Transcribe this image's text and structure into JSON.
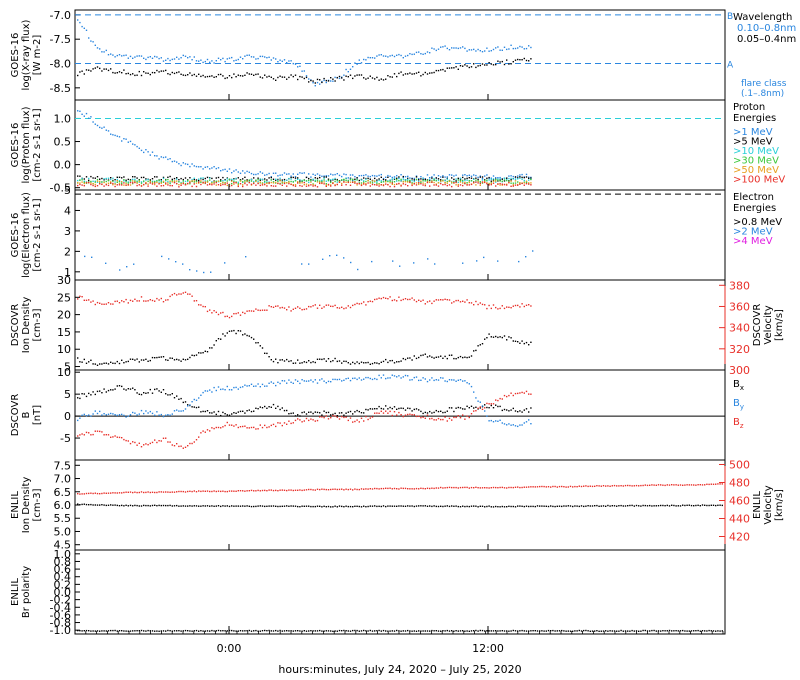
{
  "figure": {
    "xlabel": "hours:minutes, July 24, 2020 – July 25, 2020",
    "x_ticks": [
      "0:00",
      "12:00"
    ]
  },
  "chart_data": [
    {
      "id": "xray",
      "type": "scatter",
      "ylabel": [
        "GOES-16",
        "log(X-ray flux)",
        "[W m-2]"
      ],
      "ylim": [
        -8.75,
        -6.9
      ],
      "yticks": [
        -7.0,
        -7.5,
        -8.0,
        -8.5
      ],
      "legend_title": "Wavelength",
      "series": [
        {
          "name": "0.10–0.8nm",
          "color": "#2a86df",
          "values": [
            -7.0,
            -7.7,
            -7.85,
            -7.85,
            -7.9,
            -7.85,
            -7.95,
            -7.9,
            -7.85,
            -7.9,
            -7.95,
            -8.4,
            -8.3,
            -7.95,
            -7.8,
            -7.85,
            -7.75,
            -7.65,
            -7.7,
            -7.7,
            -7.65,
            -7.65
          ]
        },
        {
          "name": "0.05–0.4nm",
          "color": "#000000",
          "values": [
            -8.2,
            -8.1,
            -8.15,
            -8.2,
            -8.15,
            -8.2,
            -8.25,
            -8.25,
            -8.2,
            -8.3,
            -8.25,
            -8.35,
            -8.3,
            -8.25,
            -8.3,
            -8.2,
            -8.2,
            -8.1,
            -8.05,
            -8.0,
            -7.95,
            -7.9
          ]
        }
      ],
      "ref_lines": [
        {
          "value": -7.0,
          "label": "B",
          "color": "#2a86df"
        },
        {
          "value": -8.0,
          "label": "A",
          "color": "#2a86df"
        }
      ],
      "annotation": [
        "flare class",
        "(.1–.8nm)"
      ]
    },
    {
      "id": "proton",
      "type": "scatter",
      "ylabel": [
        "GOES-16",
        "log(Proton flux)",
        "[cm-2 s-1 sr-1]"
      ],
      "ylim": [
        -0.55,
        1.4
      ],
      "yticks": [
        1.0,
        0.5,
        0.0,
        -0.5
      ],
      "legend_title": [
        "Proton",
        "Energies"
      ],
      "ref_lines": [
        {
          "value": 1.0,
          "color": "#2ad0d8"
        }
      ],
      "series": [
        {
          "name": ">1 MeV",
          "color": "#2a86df",
          "values": [
            1.25,
            0.9,
            0.6,
            0.35,
            0.15,
            0.02,
            -0.05,
            -0.12,
            -0.15,
            -0.2,
            -0.2,
            -0.22,
            -0.22,
            -0.24,
            -0.24,
            -0.25,
            -0.25,
            -0.24,
            -0.25,
            -0.25,
            -0.25,
            -0.24
          ]
        },
        {
          "name": ">5 MeV",
          "color": "#000000",
          "values": [
            -0.28,
            -0.28,
            -0.29,
            -0.29,
            -0.28,
            -0.3,
            -0.3,
            -0.29,
            -0.3,
            -0.29,
            -0.3,
            -0.3,
            -0.29,
            -0.3,
            -0.3,
            -0.29,
            -0.3,
            -0.3,
            -0.29,
            -0.3,
            -0.3,
            -0.29
          ]
        },
        {
          "name": ">10 MeV",
          "color": "#2ad0d8",
          "values": [
            -0.32,
            -0.33,
            -0.32,
            -0.33,
            -0.32,
            -0.33,
            -0.32,
            -0.33,
            -0.32,
            -0.33,
            -0.32,
            -0.33,
            -0.32,
            -0.33,
            -0.32,
            -0.33,
            -0.32,
            -0.33,
            -0.32,
            -0.33,
            -0.32,
            -0.33
          ]
        },
        {
          "name": ">30 MeV",
          "color": "#3cc83c",
          "values": [
            -0.35,
            -0.35,
            -0.36,
            -0.35,
            -0.35,
            -0.36,
            -0.35,
            -0.35,
            -0.36,
            -0.35,
            -0.35,
            -0.36,
            -0.35,
            -0.35,
            -0.36,
            -0.35,
            -0.35,
            -0.36,
            -0.35,
            -0.35,
            -0.36,
            -0.35
          ]
        },
        {
          "name": ">50 MeV",
          "color": "#e8a020",
          "values": [
            -0.38,
            -0.38,
            -0.38,
            -0.39,
            -0.38,
            -0.38,
            -0.38,
            -0.39,
            -0.38,
            -0.38,
            -0.38,
            -0.39,
            -0.38,
            -0.38,
            -0.38,
            -0.39,
            -0.38,
            -0.38,
            -0.38,
            -0.39,
            -0.38,
            -0.38
          ]
        },
        {
          "name": ">100 MeV",
          "color": "#e8302a",
          "values": [
            -0.41,
            -0.41,
            -0.42,
            -0.41,
            -0.41,
            -0.42,
            -0.41,
            -0.41,
            -0.42,
            -0.41,
            -0.41,
            -0.42,
            -0.41,
            -0.41,
            -0.42,
            -0.41,
            -0.41,
            -0.42,
            -0.41,
            -0.41,
            -0.42,
            -0.41
          ]
        }
      ]
    },
    {
      "id": "electron",
      "type": "scatter",
      "ylabel": [
        "GOES-16",
        "log(Electron flux)",
        "[cm-2 s-1 sr-1]"
      ],
      "ylim": [
        0.6,
        5.0
      ],
      "yticks": [
        5,
        4,
        3,
        2,
        1
      ],
      "legend_title": [
        "Electron",
        "Energies"
      ],
      "ref_lines": [
        {
          "value": 4.8,
          "color": "#000000"
        }
      ],
      "series": [
        {
          "name": ">0.8 MeV",
          "color": "#000000",
          "values": []
        },
        {
          "name": ">2 MeV",
          "color": "#2a86df",
          "values": [
            2.0,
            1.6,
            1.1,
            1.4,
            1.8,
            1.3,
            0.9,
            1.5,
            1.9,
            1.2,
            1.6,
            1.4,
            1.9,
            1.1,
            1.7,
            1.3,
            1.8,
            1.2,
            1.5,
            1.9,
            1.3,
            2.0
          ]
        },
        {
          "name": ">4 MeV",
          "color": "#e020e0",
          "values": []
        }
      ]
    },
    {
      "id": "dscovr_density",
      "type": "scatter",
      "ylabel": [
        "DSCOVR",
        "Ion Density",
        "[cm-3]"
      ],
      "ylabel_right": [
        "DSCOVR",
        "Velocity",
        "[km/s]"
      ],
      "ylim": [
        4,
        30
      ],
      "yticks": [
        30,
        25,
        20,
        15,
        10,
        5
      ],
      "ylim_right": [
        300,
        385
      ],
      "yticks_right": [
        380,
        360,
        340,
        320,
        300
      ],
      "series": [
        {
          "name": "Ion Density",
          "color": "#000000",
          "axis": "left",
          "values": [
            7.5,
            6.0,
            6.5,
            7.0,
            7.5,
            7.0,
            9.5,
            15.5,
            14.5,
            7.0,
            6.5,
            7.0,
            7.0,
            6.0,
            6.5,
            7.0,
            8.5,
            8.0,
            7.5,
            14.5,
            13.0,
            11.5
          ]
        },
        {
          "name": "Velocity",
          "color": "#e8302a",
          "axis": "right",
          "values": [
            370,
            363,
            364,
            368,
            366,
            375,
            358,
            352,
            355,
            360,
            358,
            361,
            360,
            362,
            368,
            368,
            365,
            366,
            366,
            360,
            361,
            362
          ]
        }
      ]
    },
    {
      "id": "dscovr_b",
      "type": "scatter",
      "ylabel": [
        "DSCOVR",
        "B",
        "[nT]"
      ],
      "ylim": [
        -10,
        10.5
      ],
      "yticks": [
        10,
        5,
        0,
        -5
      ],
      "series": [
        {
          "name": "Bx",
          "color": "#000000",
          "values": [
            4.5,
            5.5,
            7.0,
            5.5,
            6.0,
            3.5,
            1.0,
            0.5,
            1.5,
            2.5,
            0.5,
            1.0,
            0.5,
            1.0,
            2.0,
            2.0,
            1.0,
            1.5,
            2.0,
            2.5,
            1.5,
            1.5
          ]
        },
        {
          "name": "By",
          "color": "#2a86df",
          "values": [
            -0.5,
            1.0,
            0.0,
            1.0,
            0.5,
            1.5,
            6.0,
            6.5,
            7.0,
            7.5,
            8.0,
            8.0,
            8.5,
            8.5,
            9.0,
            9.0,
            8.5,
            8.5,
            8.0,
            -0.5,
            -2.0,
            -1.0
          ]
        },
        {
          "name": "Bz",
          "color": "#e8302a",
          "values": [
            -4.0,
            -3.5,
            -5.0,
            -6.5,
            -5.0,
            -7.5,
            -3.0,
            -1.5,
            -2.5,
            -2.0,
            -1.0,
            -0.5,
            0.0,
            -1.0,
            1.0,
            0.5,
            0.0,
            -0.5,
            0.0,
            3.0,
            5.0,
            5.5
          ]
        }
      ],
      "ref_lines": [
        {
          "value": 0,
          "color": "#000000",
          "solid": true
        }
      ]
    },
    {
      "id": "enlil_density",
      "type": "scatter",
      "ylabel": [
        "ENLIL",
        "Ion Density",
        "[cm-3]"
      ],
      "ylabel_right": [
        "ENLIL",
        "Velocity",
        "[km/s]"
      ],
      "ylim": [
        4.3,
        7.7
      ],
      "yticks": [
        7.5,
        7.0,
        6.5,
        6.0,
        5.5,
        5.0,
        4.5
      ],
      "ylim_right": [
        405,
        505
      ],
      "yticks_right": [
        500,
        480,
        460,
        440,
        420
      ],
      "series": [
        {
          "name": "Ion Density",
          "color": "#000000",
          "axis": "left",
          "values": [
            6.05,
            6.02,
            6.0,
            6.0,
            5.99,
            5.98,
            5.98,
            5.98,
            5.97,
            5.97,
            5.98,
            5.98,
            5.98,
            5.97,
            5.97,
            5.98,
            5.98,
            5.99,
            6.0,
            6.0,
            6.01,
            6.02
          ]
        },
        {
          "name": "Velocity",
          "color": "#e8302a",
          "axis": "right",
          "values": [
            468,
            469,
            470,
            470,
            471,
            471,
            472,
            472,
            473,
            473,
            474,
            474,
            475,
            475,
            475,
            476,
            476,
            477,
            477,
            478,
            478,
            479
          ]
        }
      ]
    },
    {
      "id": "enlil_polarity",
      "type": "scatter",
      "ylabel": [
        "ENLIL",
        "Br polarity"
      ],
      "ylim": [
        -1.1,
        1.1
      ],
      "yticks": [
        1.0,
        0.8,
        0.6,
        0.4,
        0.2,
        0.0,
        -0.2,
        -0.4,
        -0.6,
        -0.8,
        -1.0
      ],
      "series": [
        {
          "name": "Br polarity",
          "color": "#000000",
          "values": [
            -1,
            -1,
            -1,
            -1,
            -1,
            -1,
            -1,
            -1,
            -1,
            -1,
            -1,
            -1,
            -1,
            -1,
            -1,
            -1,
            -1,
            -1,
            -1,
            -1,
            -1,
            -1
          ]
        }
      ]
    }
  ]
}
